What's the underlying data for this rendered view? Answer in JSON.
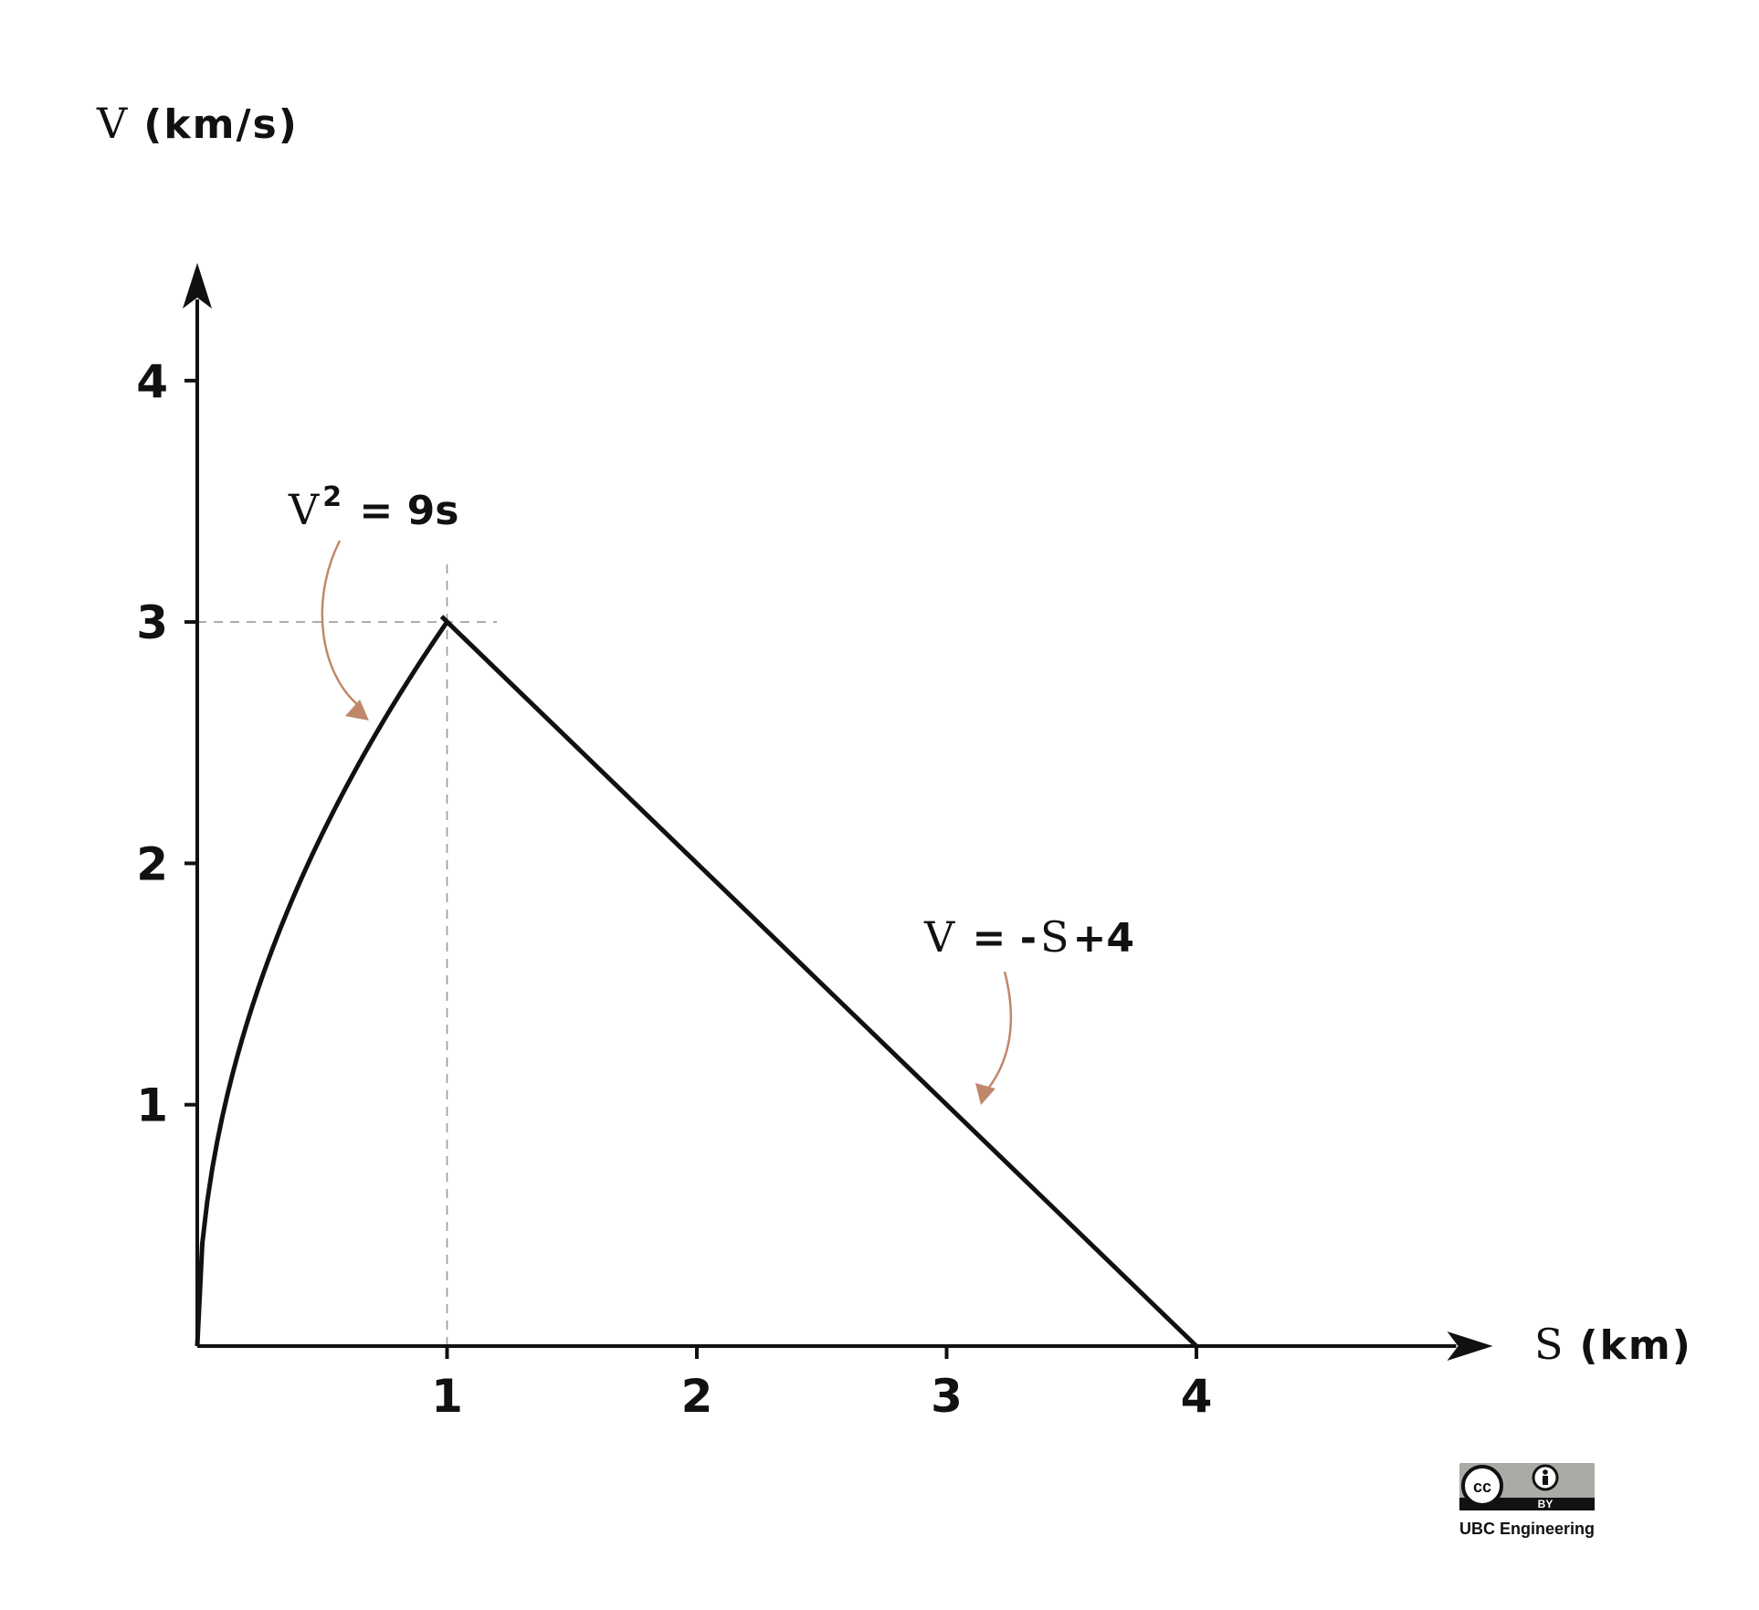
{
  "chart_data": {
    "type": "line",
    "title": "",
    "xlabel": {
      "var": "S",
      "unit": "(km)"
    },
    "ylabel": {
      "var": "V",
      "unit": "(km/s)"
    },
    "xlim": [
      0,
      5.15
    ],
    "ylim": [
      0,
      4.45
    ],
    "x_ticks": [
      1,
      2,
      3,
      4
    ],
    "x_tick_labels": [
      "1",
      "2",
      "3",
      "4"
    ],
    "y_ticks": [
      1,
      2,
      3,
      4
    ],
    "y_tick_labels": [
      "1",
      "2",
      "3",
      "4"
    ],
    "grid": false,
    "series": [
      {
        "name": "V² = 9s",
        "equation": "v^2 = 9s",
        "domain": [
          0,
          1
        ],
        "sample_step": 0.02
      },
      {
        "name": "V = -S+4",
        "equation": "v = -s + 4",
        "points": [
          [
            1,
            3
          ],
          [
            4,
            0
          ]
        ]
      }
    ],
    "reference_lines": [
      {
        "orientation": "horizontal",
        "value": 3,
        "from": 0,
        "to": 1.2,
        "style": "dashed"
      },
      {
        "orientation": "vertical",
        "value": 1,
        "from": 0,
        "to": 3.25,
        "style": "dashed"
      }
    ],
    "annotations": [
      {
        "label_parts": {
          "var": "V",
          "sup": "2",
          "rest": " = 9s"
        },
        "points_to": [
          0.69,
          2.58
        ]
      },
      {
        "label_parts": {
          "var": "V",
          "mid": " = -",
          "var2": "S",
          "rest": "+4"
        },
        "points_to": [
          3.14,
          0.98
        ]
      }
    ]
  },
  "credit": {
    "license_badge": {
      "cc": "cc",
      "by": "BY"
    },
    "text": "UBC Engineering"
  },
  "colors": {
    "line": "#111111",
    "annotation_arrow": "#c0886b",
    "reference_line": "#9a9a9a",
    "badge_bg": "#a9aca6"
  }
}
